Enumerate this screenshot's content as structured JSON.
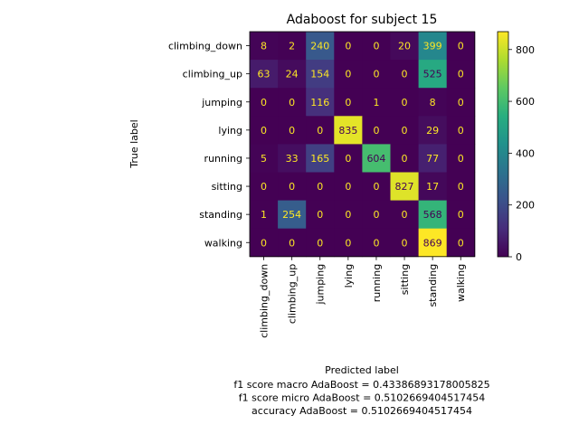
{
  "chart_data": {
    "type": "heatmap",
    "title": "Adaboost for subject 15",
    "xlabel": "Predicted label",
    "ylabel": "True label",
    "labels": [
      "climbing_down",
      "climbing_up",
      "jumping",
      "lying",
      "running",
      "sitting",
      "standing",
      "walking"
    ],
    "matrix": [
      [
        8,
        2,
        240,
        0,
        0,
        20,
        399,
        0
      ],
      [
        63,
        24,
        154,
        0,
        0,
        0,
        525,
        0
      ],
      [
        0,
        0,
        116,
        0,
        1,
        0,
        8,
        0
      ],
      [
        0,
        0,
        0,
        835,
        0,
        0,
        29,
        0
      ],
      [
        5,
        33,
        165,
        0,
        604,
        0,
        77,
        0
      ],
      [
        0,
        0,
        0,
        0,
        0,
        827,
        17,
        0
      ],
      [
        1,
        254,
        0,
        0,
        0,
        0,
        568,
        0
      ],
      [
        0,
        0,
        0,
        0,
        0,
        0,
        869,
        0
      ]
    ],
    "colorbar": {
      "colormap": "viridis",
      "range": [
        0,
        869
      ],
      "ticks": [
        0,
        200,
        400,
        600,
        800
      ]
    },
    "notes": [
      "f1 score macro AdaBoost = 0.43386893178005825",
      "f1 score micro AdaBoost = 0.5102669404517454",
      "accuracy AdaBoost = 0.5102669404517454"
    ]
  }
}
